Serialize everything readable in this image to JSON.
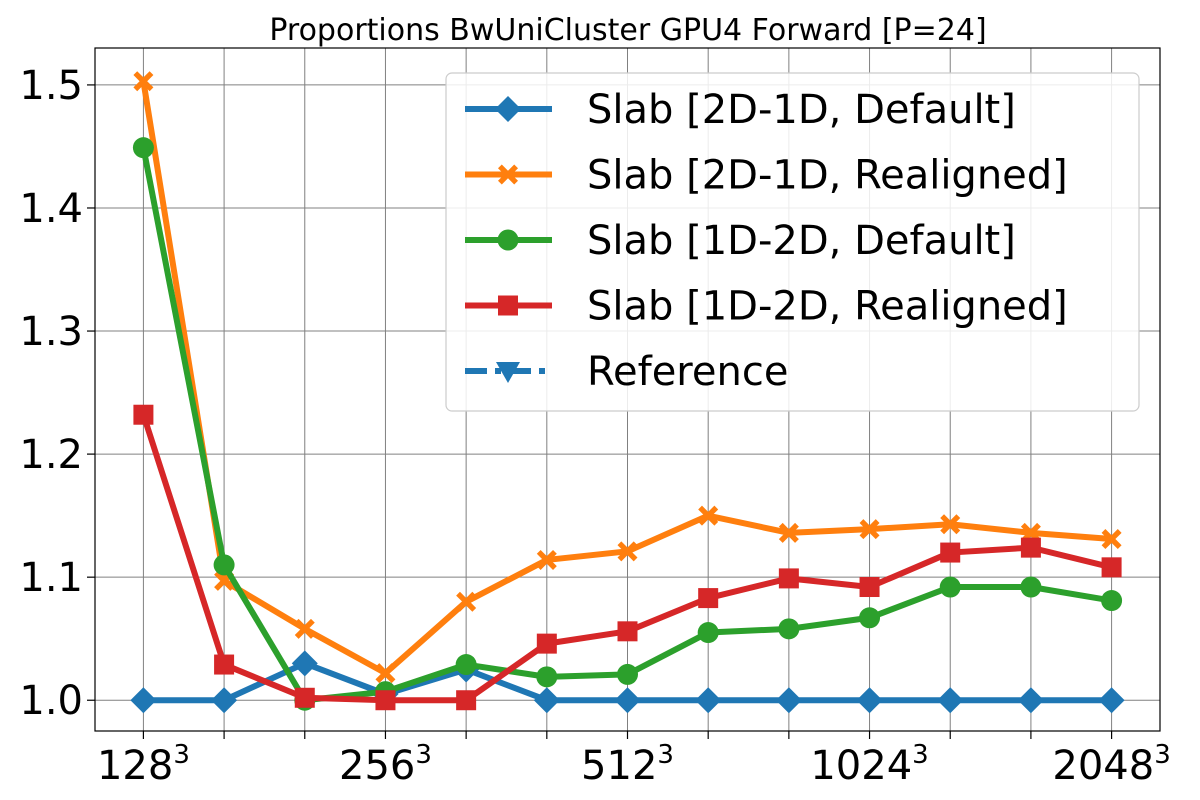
{
  "chart_data": {
    "type": "line",
    "title": "Proportions BwUniCluster GPU4 Forward [P=24]",
    "xlabel": "",
    "ylabel": "",
    "x_index": [
      0,
      1,
      2,
      3,
      4,
      5,
      6,
      7,
      8,
      9,
      10,
      11,
      12
    ],
    "x_tick_labels": [
      {
        "index": 0,
        "base": "128",
        "exp": "3"
      },
      {
        "index": 3,
        "base": "256",
        "exp": "3"
      },
      {
        "index": 6,
        "base": "512",
        "exp": "3"
      },
      {
        "index": 9,
        "base": "1024",
        "exp": "3"
      },
      {
        "index": 12,
        "base": "2048",
        "exp": "3"
      }
    ],
    "xlim": [
      -0.6,
      12.6
    ],
    "ylim": [
      0.975,
      1.53
    ],
    "yticks": [
      1.0,
      1.1,
      1.2,
      1.3,
      1.4,
      1.5
    ],
    "ytick_labels": [
      "1.0",
      "1.1",
      "1.2",
      "1.3",
      "1.4",
      "1.5"
    ],
    "grid": true,
    "legend_position": "top-right",
    "series": [
      {
        "name": "Slab [2D-1D, Default]",
        "color": "#1f77b4",
        "marker": "diamond",
        "linestyle": "solid",
        "values": [
          1.0,
          1.0,
          1.03,
          1.005,
          1.025,
          1.0,
          1.0,
          1.0,
          1.0,
          1.0,
          1.0,
          1.0,
          1.0
        ]
      },
      {
        "name": "Slab [2D-1D, Realigned]",
        "color": "#ff7f0e",
        "marker": "x",
        "linestyle": "solid",
        "values": [
          1.503,
          1.097,
          1.058,
          1.022,
          1.08,
          1.114,
          1.121,
          1.15,
          1.136,
          1.139,
          1.143,
          1.136,
          1.131
        ]
      },
      {
        "name": "Slab [1D-2D, Default]",
        "color": "#2ca02c",
        "marker": "circle",
        "linestyle": "solid",
        "values": [
          1.449,
          1.11,
          1.0,
          1.007,
          1.029,
          1.019,
          1.021,
          1.055,
          1.058,
          1.067,
          1.092,
          1.092,
          1.081
        ]
      },
      {
        "name": "Slab [1D-2D, Realigned]",
        "color": "#d62728",
        "marker": "square",
        "linestyle": "solid",
        "values": [
          1.232,
          1.029,
          1.002,
          1.0,
          1.0,
          1.046,
          1.056,
          1.083,
          1.099,
          1.092,
          1.12,
          1.124,
          1.108
        ]
      },
      {
        "name": "Reference",
        "color": "#1f77b4",
        "marker": "triangle-down",
        "linestyle": "dashdot",
        "values": []
      }
    ]
  }
}
